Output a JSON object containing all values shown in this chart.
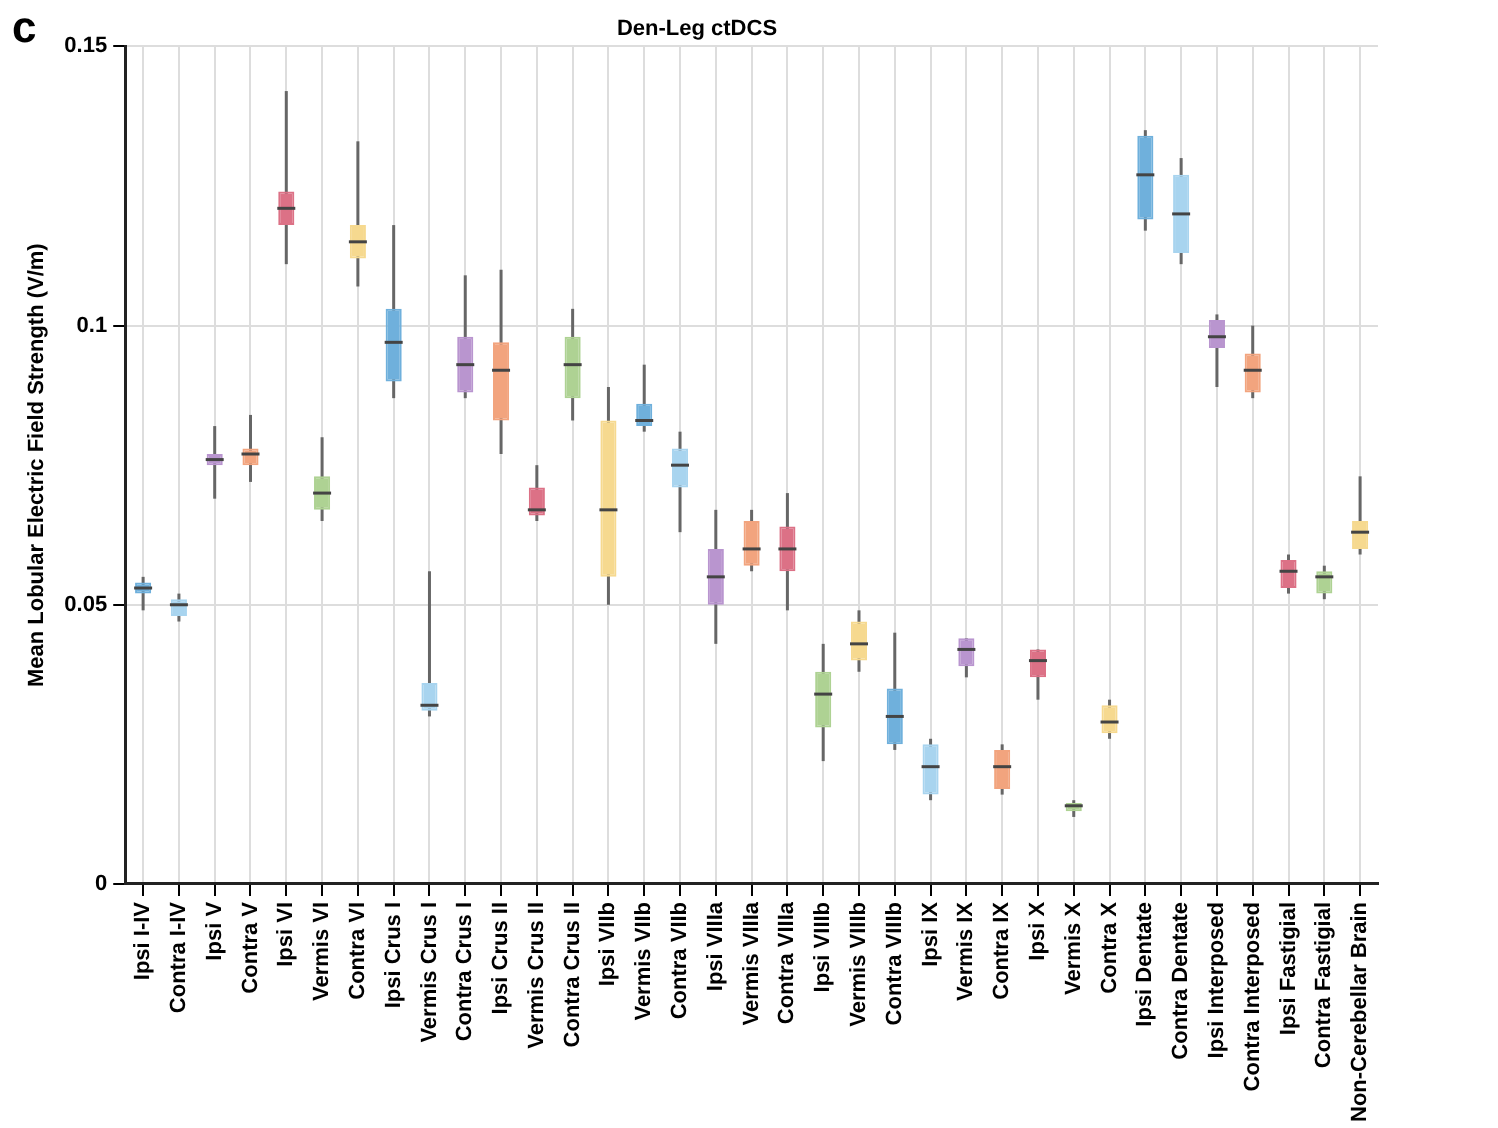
{
  "chart_data": {
    "type": "box",
    "title": "Den-Leg ctDCS",
    "ylabel": "Mean Lobular Electric Field Strength (V/m)",
    "annotations": [
      "c"
    ],
    "categories": [
      "Ipsi I-IV",
      "Contra I-IV",
      "Ipsi V",
      "Contra V",
      "Ipsi VI",
      "Vermis VI",
      "Contra VI",
      "Ipsi Crus I",
      "Vermis Crus I",
      "Contra Crus I",
      "Ipsi Crus II",
      "Vermis Crus II",
      "Contra Crus II",
      "Ipsi VIIb",
      "Vermis VIIb",
      "Contra VIIb",
      "Ipsi VIIIa",
      "Vermis VIIIa",
      "Contra VIIIa",
      "Ipsi VIIIb",
      "Vermis VIIIb",
      "Contra VIIIb",
      "Ipsi IX",
      "Vermis IX",
      "Contra IX",
      "Ipsi X",
      "Vermis X",
      "Contra X",
      "Ipsi Dentate",
      "Contra Dentate",
      "Ipsi Interposed",
      "Contra Interposed",
      "Ipsi Fastigial",
      "Contra Fastigial",
      "Non-Cerebellar Brain"
    ],
    "boxes": [
      {
        "low": 0.049,
        "q1": 0.052,
        "median": 0.053,
        "q3": 0.054,
        "high": 0.055
      },
      {
        "low": 0.047,
        "q1": 0.048,
        "median": 0.05,
        "q3": 0.051,
        "high": 0.052
      },
      {
        "low": 0.069,
        "q1": 0.075,
        "median": 0.076,
        "q3": 0.077,
        "high": 0.082
      },
      {
        "low": 0.072,
        "q1": 0.075,
        "median": 0.077,
        "q3": 0.078,
        "high": 0.084
      },
      {
        "low": 0.111,
        "q1": 0.118,
        "median": 0.121,
        "q3": 0.124,
        "high": 0.142
      },
      {
        "low": 0.065,
        "q1": 0.067,
        "median": 0.07,
        "q3": 0.073,
        "high": 0.08
      },
      {
        "low": 0.107,
        "q1": 0.112,
        "median": 0.115,
        "q3": 0.118,
        "high": 0.133
      },
      {
        "low": 0.087,
        "q1": 0.09,
        "median": 0.097,
        "q3": 0.103,
        "high": 0.118
      },
      {
        "low": 0.03,
        "q1": 0.031,
        "median": 0.032,
        "q3": 0.036,
        "high": 0.056
      },
      {
        "low": 0.087,
        "q1": 0.088,
        "median": 0.093,
        "q3": 0.098,
        "high": 0.109
      },
      {
        "low": 0.077,
        "q1": 0.083,
        "median": 0.092,
        "q3": 0.097,
        "high": 0.11
      },
      {
        "low": 0.065,
        "q1": 0.066,
        "median": 0.067,
        "q3": 0.071,
        "high": 0.075
      },
      {
        "low": 0.083,
        "q1": 0.087,
        "median": 0.093,
        "q3": 0.098,
        "high": 0.103
      },
      {
        "low": 0.05,
        "q1": 0.055,
        "median": 0.067,
        "q3": 0.083,
        "high": 0.089
      },
      {
        "low": 0.081,
        "q1": 0.082,
        "median": 0.083,
        "q3": 0.086,
        "high": 0.093
      },
      {
        "low": 0.063,
        "q1": 0.071,
        "median": 0.075,
        "q3": 0.078,
        "high": 0.081
      },
      {
        "low": 0.043,
        "q1": 0.05,
        "median": 0.055,
        "q3": 0.06,
        "high": 0.067
      },
      {
        "low": 0.056,
        "q1": 0.057,
        "median": 0.06,
        "q3": 0.065,
        "high": 0.067
      },
      {
        "low": 0.049,
        "q1": 0.056,
        "median": 0.06,
        "q3": 0.064,
        "high": 0.07
      },
      {
        "low": 0.022,
        "q1": 0.028,
        "median": 0.034,
        "q3": 0.038,
        "high": 0.043
      },
      {
        "low": 0.038,
        "q1": 0.04,
        "median": 0.043,
        "q3": 0.047,
        "high": 0.049
      },
      {
        "low": 0.024,
        "q1": 0.025,
        "median": 0.03,
        "q3": 0.035,
        "high": 0.045
      },
      {
        "low": 0.015,
        "q1": 0.016,
        "median": 0.021,
        "q3": 0.025,
        "high": 0.026
      },
      {
        "low": 0.037,
        "q1": 0.039,
        "median": 0.042,
        "q3": 0.044,
        "high": 0.044
      },
      {
        "low": 0.016,
        "q1": 0.017,
        "median": 0.021,
        "q3": 0.024,
        "high": 0.025
      },
      {
        "low": 0.033,
        "q1": 0.037,
        "median": 0.04,
        "q3": 0.042,
        "high": 0.042
      },
      {
        "low": 0.012,
        "q1": 0.013,
        "median": 0.014,
        "q3": 0.0145,
        "high": 0.015
      },
      {
        "low": 0.026,
        "q1": 0.027,
        "median": 0.029,
        "q3": 0.032,
        "high": 0.033
      },
      {
        "low": 0.117,
        "q1": 0.119,
        "median": 0.127,
        "q3": 0.134,
        "high": 0.135
      },
      {
        "low": 0.111,
        "q1": 0.113,
        "median": 0.12,
        "q3": 0.127,
        "high": 0.13
      },
      {
        "low": 0.089,
        "q1": 0.096,
        "median": 0.098,
        "q3": 0.101,
        "high": 0.102
      },
      {
        "low": 0.087,
        "q1": 0.088,
        "median": 0.092,
        "q3": 0.095,
        "high": 0.1
      },
      {
        "low": 0.052,
        "q1": 0.053,
        "median": 0.056,
        "q3": 0.058,
        "high": 0.059
      },
      {
        "low": 0.051,
        "q1": 0.052,
        "median": 0.055,
        "q3": 0.056,
        "high": 0.057
      },
      {
        "low": 0.059,
        "q1": 0.06,
        "median": 0.063,
        "q3": 0.065,
        "high": 0.073
      }
    ],
    "colors": [
      "#6fb0dc",
      "#a8d4ef",
      "#b995cf",
      "#f2a47e",
      "#dc7186",
      "#aed293",
      "#f6d98f",
      "#6fb0dc",
      "#a8d4ef",
      "#b995cf",
      "#f2a47e",
      "#dc7186",
      "#aed293",
      "#f6d98f",
      "#6fb0dc",
      "#a8d4ef",
      "#b995cf",
      "#f2a47e",
      "#dc7186",
      "#aed293",
      "#f6d98f",
      "#6fb0dc",
      "#a8d4ef",
      "#b995cf",
      "#f2a47e",
      "#dc7186",
      "#aed293",
      "#f6d98f",
      "#6fb0dc",
      "#a8d4ef",
      "#b995cf",
      "#f2a47e",
      "#dc7186",
      "#aed293",
      "#f6d98f"
    ],
    "ylim": [
      0,
      0.15
    ],
    "yticks": [
      0,
      0.05,
      0.1,
      0.15
    ],
    "grid": true
  }
}
